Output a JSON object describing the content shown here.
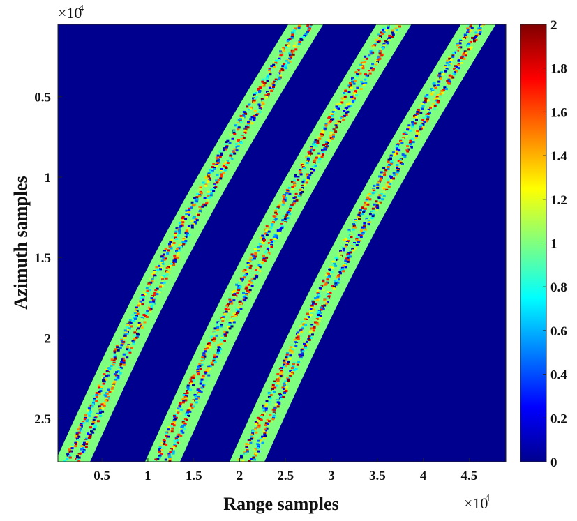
{
  "chart_data": {
    "type": "heatmap",
    "xlabel": "Range samples",
    "ylabel": "Azimuth samples",
    "x_exponent_label": "×10",
    "x_exponent_power": "4",
    "y_exponent_label": "×10",
    "y_exponent_power": "4",
    "xlim": [
      0.02,
      4.9
    ],
    "ylim": [
      0.05,
      2.77
    ],
    "y_reversed": true,
    "x_ticks": [
      {
        "value": 0.5,
        "label": "0.5"
      },
      {
        "value": 1,
        "label": "1"
      },
      {
        "value": 1.5,
        "label": "1.5"
      },
      {
        "value": 2,
        "label": "2"
      },
      {
        "value": 2.5,
        "label": "2.5"
      },
      {
        "value": 3,
        "label": "3"
      },
      {
        "value": 3.5,
        "label": "3.5"
      },
      {
        "value": 4,
        "label": "4"
      },
      {
        "value": 4.5,
        "label": "4.5"
      }
    ],
    "y_ticks": [
      {
        "value": 0.5,
        "label": "0.5"
      },
      {
        "value": 1,
        "label": "1"
      },
      {
        "value": 1.5,
        "label": "1.5"
      },
      {
        "value": 2,
        "label": "2"
      },
      {
        "value": 2.5,
        "label": "2.5"
      }
    ],
    "background_value": 0,
    "bands": [
      {
        "value": 1,
        "x_bottom": 0.18,
        "x_top": 2.72,
        "width": 0.38
      },
      {
        "value": 1,
        "x_bottom": 1.16,
        "x_top": 3.68,
        "width": 0.38
      },
      {
        "value": 1,
        "x_bottom": 2.08,
        "x_top": 4.6,
        "width": 0.38
      }
    ],
    "band_center_noise_range": [
      0,
      2
    ],
    "colorbar": {
      "colormap": "jet",
      "clim": [
        0,
        2
      ],
      "ticks": [
        {
          "value": 0,
          "label": "0"
        },
        {
          "value": 0.2,
          "label": "0.2"
        },
        {
          "value": 0.4,
          "label": "0.4"
        },
        {
          "value": 0.6,
          "label": "0.6"
        },
        {
          "value": 0.8,
          "label": "0.8"
        },
        {
          "value": 1,
          "label": "1"
        },
        {
          "value": 1.2,
          "label": "1.2"
        },
        {
          "value": 1.4,
          "label": "1.4"
        },
        {
          "value": 1.6,
          "label": "1.6"
        },
        {
          "value": 1.8,
          "label": "1.8"
        },
        {
          "value": 2,
          "label": "2"
        }
      ]
    },
    "grid": false,
    "colors": {
      "background": "#00008f",
      "band": "#7fff7f"
    }
  }
}
